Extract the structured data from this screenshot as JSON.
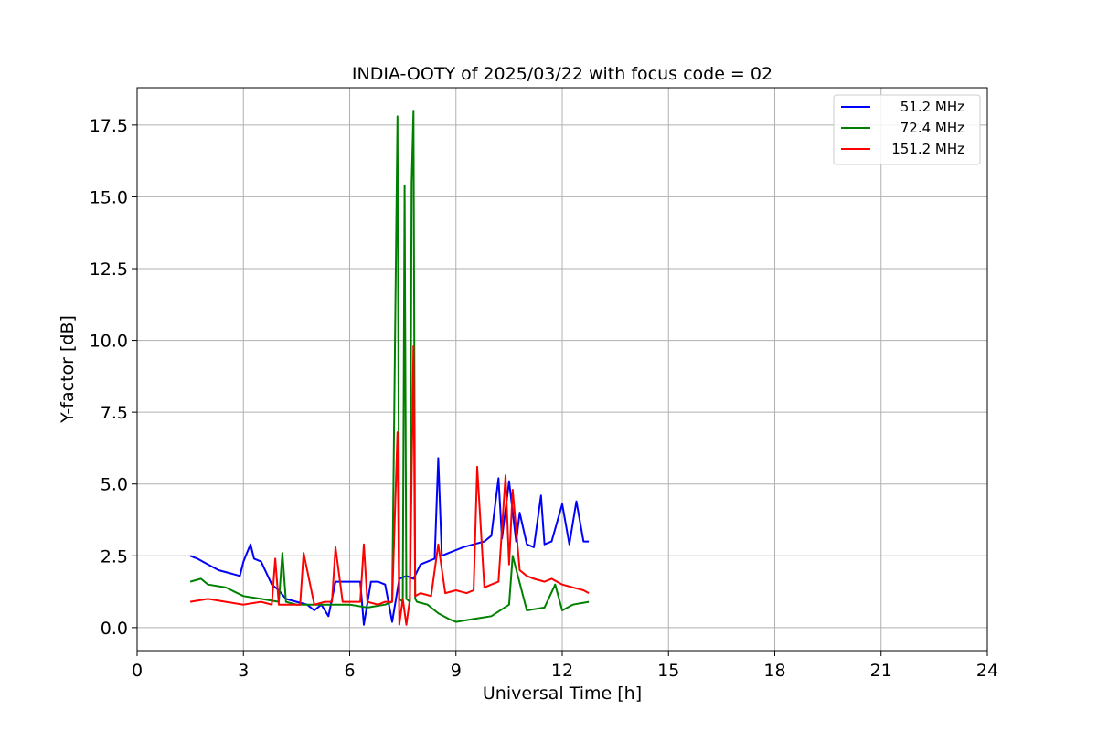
{
  "chart_data": {
    "type": "line",
    "title": "INDIA-OOTY of 2025/03/22 with focus code = 02",
    "xlabel": "Universal Time [h]",
    "ylabel": "Y-factor [dB]",
    "xlim": [
      0,
      24
    ],
    "ylim": [
      -0.8,
      18.8
    ],
    "xticks": [
      0,
      3,
      6,
      9,
      12,
      15,
      18,
      21,
      24
    ],
    "xtick_labels": [
      "0",
      "3",
      "6",
      "9",
      "12",
      "15",
      "18",
      "21",
      "24"
    ],
    "yticks": [
      0,
      2.5,
      5,
      7.5,
      10,
      12.5,
      15,
      17.5
    ],
    "ytick_labels": [
      "0.0",
      "2.5",
      "5.0",
      "7.5",
      "10.0",
      "12.5",
      "15.0",
      "17.5"
    ],
    "grid": true,
    "legend_position": "top-right",
    "series": [
      {
        "name": "51.2 MHz",
        "color": "#0000ff",
        "x": [
          1.5,
          1.7,
          2.0,
          2.3,
          2.6,
          2.9,
          3.0,
          3.1,
          3.2,
          3.3,
          3.5,
          3.8,
          4.0,
          4.2,
          4.5,
          4.8,
          5.0,
          5.2,
          5.4,
          5.6,
          6.0,
          6.3,
          6.4,
          6.6,
          6.8,
          7.0,
          7.2,
          7.4,
          7.6,
          7.8,
          8.0,
          8.2,
          8.4,
          8.5,
          8.6,
          8.8,
          9.0,
          9.2,
          9.5,
          9.8,
          10.0,
          10.2,
          10.3,
          10.5,
          10.7,
          10.8,
          11.0,
          11.2,
          11.4,
          11.5,
          11.7,
          12.0,
          12.2,
          12.4,
          12.6,
          12.75
        ],
        "y": [
          2.5,
          2.4,
          2.2,
          2.0,
          1.9,
          1.8,
          2.3,
          2.6,
          2.9,
          2.4,
          2.3,
          1.5,
          1.3,
          1.0,
          0.9,
          0.8,
          0.6,
          0.8,
          0.4,
          1.6,
          1.6,
          1.6,
          0.1,
          1.6,
          1.6,
          1.5,
          0.2,
          1.7,
          1.8,
          1.7,
          2.2,
          2.3,
          2.4,
          5.9,
          2.5,
          2.6,
          2.7,
          2.8,
          2.9,
          3.0,
          3.2,
          5.2,
          3.1,
          5.1,
          3.0,
          4.0,
          2.9,
          2.8,
          4.6,
          2.9,
          3.0,
          4.3,
          2.9,
          4.4,
          3.0,
          3.0
        ]
      },
      {
        "name": "72.4 MHz",
        "color": "#008000",
        "x": [
          1.5,
          1.8,
          2.0,
          2.5,
          3.0,
          3.5,
          4.0,
          4.1,
          4.2,
          4.5,
          5.0,
          5.5,
          6.0,
          6.5,
          7.0,
          7.2,
          7.35,
          7.4,
          7.5,
          7.55,
          7.6,
          7.7,
          7.75,
          7.8,
          7.85,
          7.9,
          8.2,
          8.5,
          8.8,
          9.0,
          9.5,
          10.0,
          10.5,
          10.6,
          11.0,
          11.5,
          11.8,
          12.0,
          12.3,
          12.75
        ],
        "y": [
          1.6,
          1.7,
          1.5,
          1.4,
          1.1,
          1.0,
          0.9,
          2.6,
          0.9,
          0.8,
          0.8,
          0.8,
          0.8,
          0.7,
          0.8,
          0.9,
          17.8,
          1.0,
          0.9,
          15.4,
          1.0,
          0.9,
          15.5,
          18.0,
          1.0,
          0.9,
          0.8,
          0.5,
          0.3,
          0.2,
          0.3,
          0.4,
          0.8,
          2.5,
          0.6,
          0.7,
          1.5,
          0.6,
          0.8,
          0.9
        ]
      },
      {
        "name": "151.2 MHz",
        "color": "#ff0000",
        "x": [
          1.5,
          2.0,
          2.5,
          3.0,
          3.5,
          3.8,
          3.9,
          4.0,
          4.3,
          4.6,
          4.7,
          5.0,
          5.3,
          5.5,
          5.6,
          5.8,
          6.0,
          6.3,
          6.4,
          6.5,
          6.8,
          7.0,
          7.2,
          7.35,
          7.4,
          7.5,
          7.6,
          7.7,
          7.8,
          7.85,
          8.0,
          8.3,
          8.5,
          8.7,
          9.0,
          9.3,
          9.5,
          9.6,
          9.8,
          10.0,
          10.2,
          10.4,
          10.5,
          10.6,
          10.8,
          11.0,
          11.2,
          11.5,
          11.7,
          12.0,
          12.3,
          12.6,
          12.75
        ],
        "y": [
          0.9,
          1.0,
          0.9,
          0.8,
          0.9,
          0.8,
          2.4,
          0.8,
          0.8,
          0.8,
          2.6,
          0.8,
          0.9,
          0.9,
          2.8,
          0.9,
          0.9,
          0.9,
          2.9,
          0.9,
          0.8,
          0.9,
          0.9,
          6.8,
          0.1,
          1.0,
          0.1,
          1.0,
          9.8,
          1.1,
          1.2,
          1.1,
          2.9,
          1.2,
          1.3,
          1.2,
          1.3,
          5.6,
          1.4,
          1.5,
          1.6,
          5.3,
          2.2,
          4.8,
          2.0,
          1.8,
          1.7,
          1.6,
          1.7,
          1.5,
          1.4,
          1.3,
          1.2
        ]
      }
    ]
  }
}
